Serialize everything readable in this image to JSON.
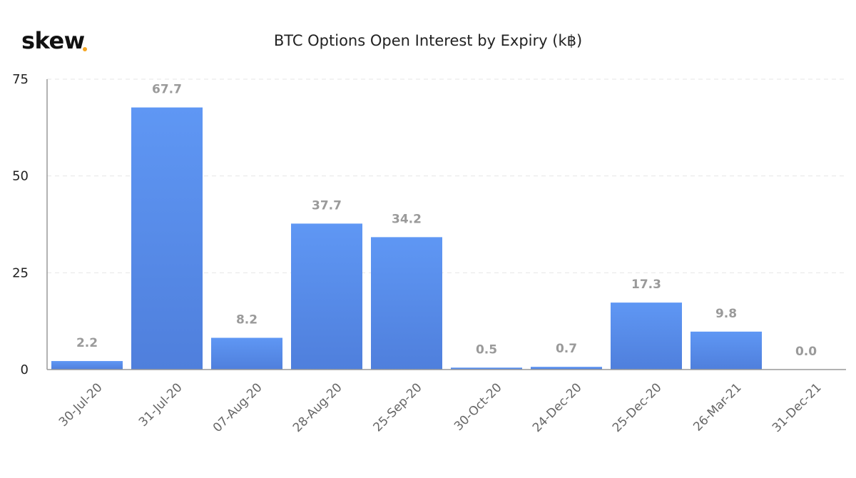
{
  "brand": {
    "name": "skew",
    "dot_color": "#f5a623"
  },
  "chart_data": {
    "type": "bar",
    "title": "BTC Options Open Interest by Expiry (k฿)",
    "xlabel": "",
    "ylabel": "",
    "categories": [
      "30-Jul-20",
      "31-Jul-20",
      "07-Aug-20",
      "28-Aug-20",
      "25-Sep-20",
      "30-Oct-20",
      "24-Dec-20",
      "25-Dec-20",
      "26-Mar-21",
      "31-Dec-21"
    ],
    "values": [
      2.2,
      67.7,
      8.2,
      37.7,
      34.2,
      0.5,
      0.7,
      17.3,
      9.8,
      0.0
    ],
    "data_labels": [
      "2.2",
      "67.7",
      "8.2",
      "37.7",
      "34.2",
      "0.5",
      "0.7",
      "17.3",
      "9.8",
      "0.0"
    ],
    "ylim": [
      0,
      75
    ],
    "yticks": [
      0,
      25,
      50,
      75
    ],
    "grid": true,
    "legend": "none",
    "colors": {
      "bar_top": "#5f97f4",
      "bar_bottom": "#4f7fdc",
      "grid": "#e6e6e6",
      "axis": "#999999"
    }
  }
}
